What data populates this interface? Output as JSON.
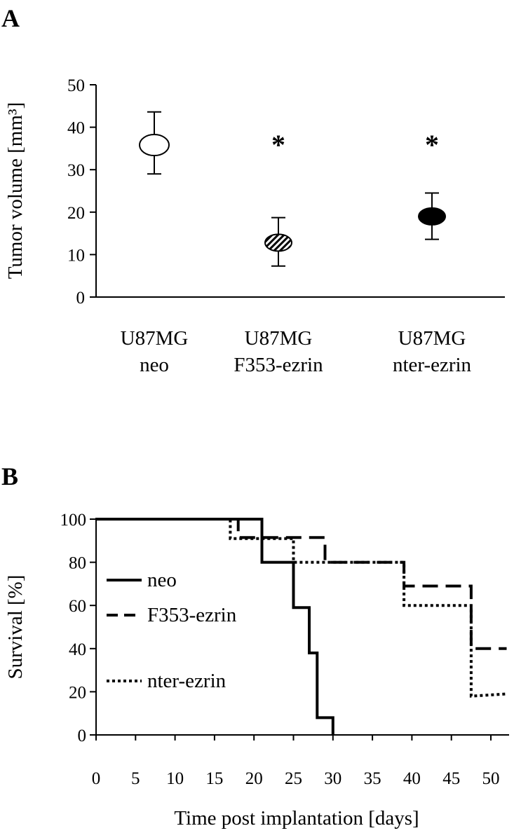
{
  "panel_a": {
    "label": "A",
    "ylabel": "Tumor volume [mm³]",
    "star_symbol": "*"
  },
  "panel_b": {
    "label": "B",
    "ylabel": "Survival [%]",
    "xlabel": "Time post implantation [days]"
  },
  "chart_data": [
    {
      "type": "scatter",
      "title": "",
      "ylabel": "Tumor volume [mm³]",
      "ylim": [
        0,
        50
      ],
      "yticks": [
        0,
        10,
        20,
        30,
        40,
        50
      ],
      "grid": false,
      "categories": [
        {
          "line1": "U87MG",
          "line2": "neo"
        },
        {
          "line1": "U87MG",
          "line2": "F353-ezrin"
        },
        {
          "line1": "U87MG",
          "line2": "nter-ezrin"
        }
      ],
      "values": [
        35.8,
        12.8,
        19
      ],
      "error_upper": [
        43.6,
        18.7,
        24.5
      ],
      "error_lower": [
        29,
        7.3,
        13.6
      ],
      "marker_style": [
        "open",
        "hatched",
        "filled"
      ],
      "significance": [
        false,
        true,
        true
      ]
    },
    {
      "type": "line",
      "title": "",
      "xlabel": "Time post implantation [days]",
      "ylabel": "Survival [%]",
      "xlim": [
        0,
        52
      ],
      "ylim": [
        0,
        100
      ],
      "xticks": [
        0,
        5,
        10,
        15,
        20,
        25,
        30,
        35,
        40,
        45,
        50
      ],
      "yticks": [
        0,
        20,
        40,
        60,
        80,
        100
      ],
      "grid": false,
      "legend_position": "left",
      "series": [
        {
          "name": "neo",
          "style": "solid",
          "x": [
            0,
            21,
            21,
            25,
            25,
            27,
            27,
            28,
            28,
            30,
            30
          ],
          "y": [
            100,
            100,
            80,
            80,
            59,
            59,
            38,
            38,
            8,
            8,
            0
          ]
        },
        {
          "name": "F353-ezrin",
          "style": "dashed",
          "x": [
            0,
            18,
            18,
            29,
            29,
            39,
            39,
            47.5,
            47.5,
            52
          ],
          "y": [
            100,
            100,
            91.5,
            91.5,
            80,
            80,
            69,
            69,
            40,
            40
          ]
        },
        {
          "name": "nter-ezrin",
          "style": "dotted",
          "x": [
            0,
            17,
            17,
            25,
            25,
            39,
            39,
            47.5,
            47.5,
            52
          ],
          "y": [
            100,
            100,
            91,
            91,
            80,
            80,
            60,
            60,
            18,
            19
          ]
        }
      ]
    }
  ]
}
